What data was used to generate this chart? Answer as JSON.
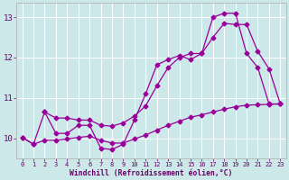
{
  "xlabel": "Windchill (Refroidissement éolien,°C)",
  "bg_color": "#cce8e8",
  "line_color": "#990099",
  "grid_color": "#ffffff",
  "xlim": [
    -0.5,
    23.5
  ],
  "ylim": [
    9.5,
    13.35
  ],
  "yticks": [
    10,
    11,
    12,
    13
  ],
  "xticks": [
    0,
    1,
    2,
    3,
    4,
    5,
    6,
    7,
    8,
    9,
    10,
    11,
    12,
    13,
    14,
    15,
    16,
    17,
    18,
    19,
    20,
    21,
    22,
    23
  ],
  "zigzag_x": [
    0,
    1,
    2,
    3,
    4,
    5,
    6,
    7,
    8,
    9,
    10,
    11,
    12,
    13,
    14,
    15,
    16,
    17,
    18,
    19,
    20,
    21,
    22,
    23
  ],
  "zigzag_y": [
    10.02,
    9.85,
    10.65,
    10.12,
    10.12,
    10.32,
    10.32,
    9.75,
    9.72,
    9.85,
    10.45,
    11.1,
    11.82,
    11.95,
    12.05,
    11.95,
    12.1,
    13.0,
    13.1,
    13.1,
    12.1,
    11.75,
    10.85,
    10.85
  ],
  "upper_x": [
    2,
    3,
    4,
    5,
    6,
    7,
    8,
    9,
    10,
    11,
    12,
    13,
    14,
    15,
    16,
    17,
    18,
    19,
    20,
    21,
    22,
    23
  ],
  "upper_y": [
    10.65,
    10.5,
    10.5,
    10.45,
    10.45,
    10.32,
    10.3,
    10.38,
    10.55,
    10.8,
    11.3,
    11.75,
    12.0,
    12.1,
    12.1,
    12.5,
    12.85,
    12.82,
    12.82,
    12.15,
    11.72,
    10.85
  ],
  "lower_x": [
    0,
    1,
    2,
    3,
    4,
    5,
    6,
    7,
    8,
    9,
    10,
    11,
    12,
    13,
    14,
    15,
    16,
    17,
    18,
    19,
    20,
    21,
    22,
    23
  ],
  "lower_y": [
    10.02,
    9.85,
    9.95,
    9.95,
    9.98,
    10.02,
    10.05,
    9.95,
    9.88,
    9.88,
    9.98,
    10.08,
    10.2,
    10.32,
    10.42,
    10.52,
    10.58,
    10.65,
    10.72,
    10.78,
    10.82,
    10.83,
    10.84,
    10.85
  ]
}
